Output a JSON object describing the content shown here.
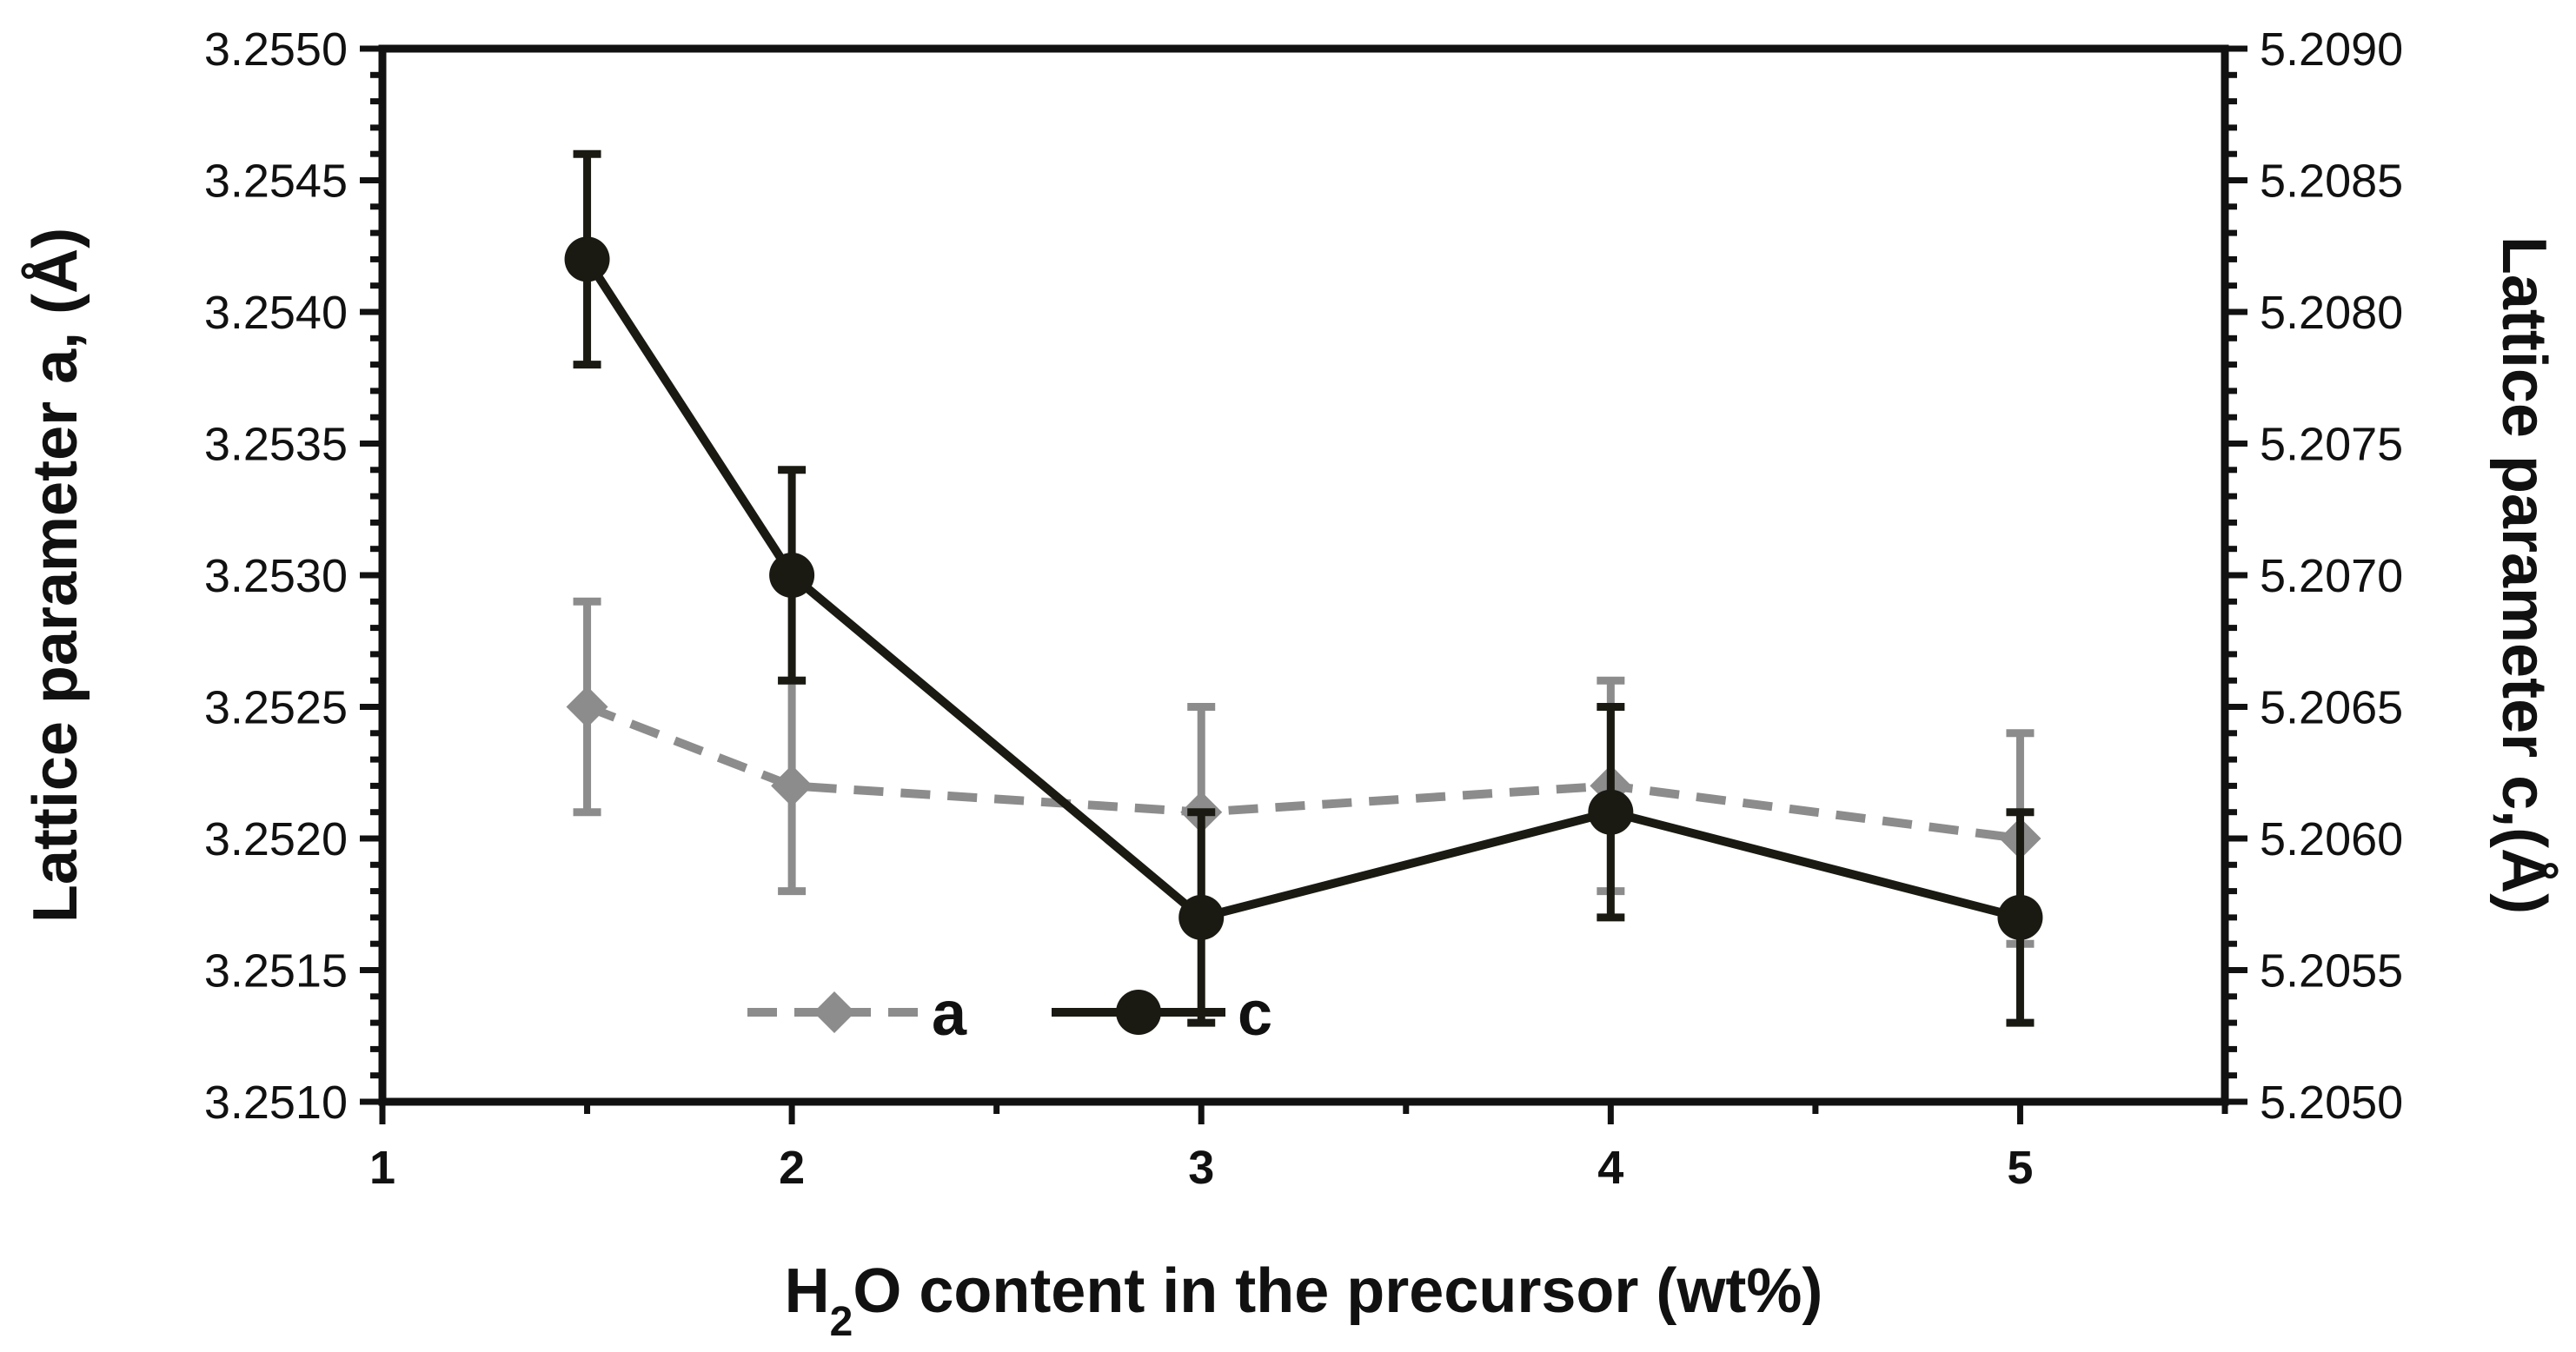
{
  "chart_data": {
    "type": "line",
    "xlabel": {
      "prefix": "H",
      "sub": "2",
      "suffix": "O content in the precursor (wt%)"
    },
    "ylabel_left": "Lattice parameter a, (Å)",
    "ylabel_right": "Lattice parameter c,(Å)",
    "x_range": [
      1,
      5.5
    ],
    "x_ticks": [
      1,
      2,
      3,
      4,
      5
    ],
    "x_tick_labels": [
      "1",
      "2",
      "3",
      "4",
      "5"
    ],
    "y_left_range": [
      3.251,
      3.255
    ],
    "y_left_ticks": [
      3.251,
      3.2515,
      3.252,
      3.2525,
      3.253,
      3.2535,
      3.254,
      3.2545,
      3.255
    ],
    "y_left_tick_labels": [
      "3.2510",
      "3.2515",
      "3.2520",
      "3.2525",
      "3.2530",
      "3.2535",
      "3.2540",
      "3.2545",
      "3.2550"
    ],
    "y_right_range": [
      5.205,
      5.209
    ],
    "y_right_ticks": [
      5.205,
      5.2055,
      5.206,
      5.2065,
      5.207,
      5.2075,
      5.208,
      5.2085,
      5.209
    ],
    "y_right_tick_labels": [
      "5.2050",
      "5.2055",
      "5.2060",
      "5.2065",
      "5.2070",
      "5.2075",
      "5.2080",
      "5.2085",
      "5.2090"
    ],
    "grid": false,
    "legend_position": "bottom-left",
    "series": [
      {
        "name": "a",
        "axis": "left",
        "color": "#8c8c8c",
        "line_style": "dashed",
        "marker": "diamond",
        "x": [
          1.5,
          2,
          3,
          4,
          5
        ],
        "y": [
          3.2525,
          3.2522,
          3.2521,
          3.2522,
          3.252
        ],
        "error": [
          0.0004,
          0.0004,
          0.0004,
          0.0004,
          0.0004
        ]
      },
      {
        "name": "c",
        "axis": "right",
        "color": "#1a1a12",
        "line_style": "solid",
        "marker": "circle",
        "x": [
          1.5,
          2,
          3,
          4,
          5
        ],
        "y": [
          5.2082,
          5.207,
          5.2057,
          5.2061,
          5.2057
        ],
        "error": [
          0.0004,
          0.0004,
          0.0004,
          0.0004,
          0.0004
        ]
      }
    ]
  }
}
